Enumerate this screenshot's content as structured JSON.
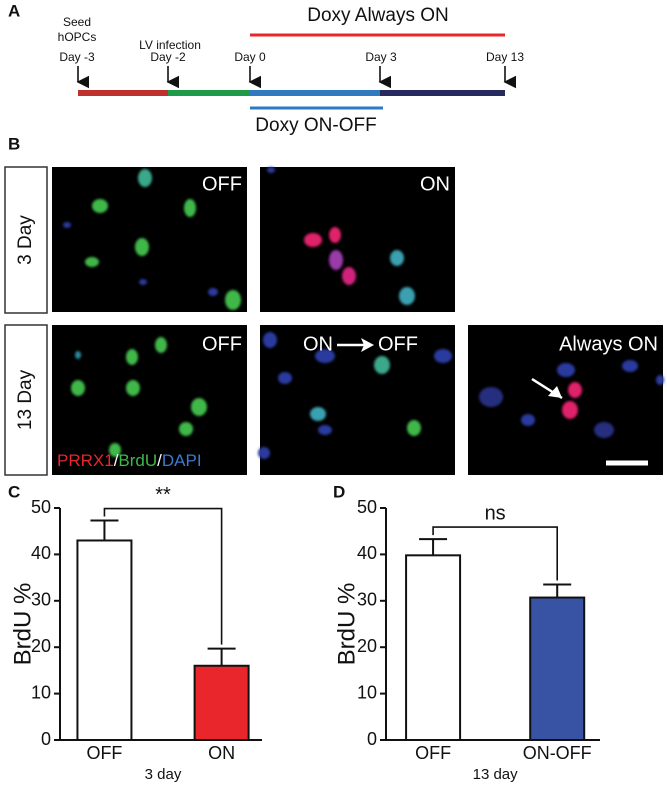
{
  "panel_labels": [
    "A",
    "B",
    "C",
    "D"
  ],
  "timeline": {
    "points": [
      {
        "label": [
          "Seed",
          "hOPCs",
          "Day -3"
        ]
      },
      {
        "label": [
          "LV infection",
          "Day -2"
        ]
      },
      {
        "label": [
          "Day 0"
        ]
      },
      {
        "label": [
          "Day 3"
        ]
      },
      {
        "label": [
          "Day 13"
        ]
      }
    ],
    "always_on": "Doxy Always ON",
    "on_off": "Doxy ON-OFF"
  },
  "microscopy": {
    "rows": [
      "3 Day",
      "13 Day"
    ],
    "panels": [
      "OFF",
      "ON",
      "OFF",
      "ON",
      "OFF",
      "Always ON"
    ],
    "stain_legend": [
      "PRRX1",
      "/",
      "BrdU",
      "/",
      "DAPI"
    ]
  },
  "chart_data": [
    {
      "type": "bar",
      "categories": [
        "OFF",
        "ON"
      ],
      "values": [
        43,
        16
      ],
      "errors": [
        4.3,
        3.7
      ],
      "colors": [
        "#ffffff",
        "#e8262b"
      ],
      "ylim": [
        0,
        50
      ],
      "yticks": [
        0,
        10,
        20,
        30,
        40,
        50
      ],
      "ylabel": "BrdU %",
      "xlabel": "3 day",
      "annotation": "**"
    },
    {
      "type": "bar",
      "categories": [
        "OFF",
        "ON-OFF"
      ],
      "values": [
        39.8,
        30.7
      ],
      "errors": [
        3.5,
        2.8
      ],
      "colors": [
        "#ffffff",
        "#3953a4"
      ],
      "ylim": [
        0,
        50
      ],
      "yticks": [
        0,
        10,
        20,
        30,
        40,
        50
      ],
      "ylabel": "BrdU %",
      "xlabel": "13 day",
      "annotation": "ns"
    }
  ]
}
